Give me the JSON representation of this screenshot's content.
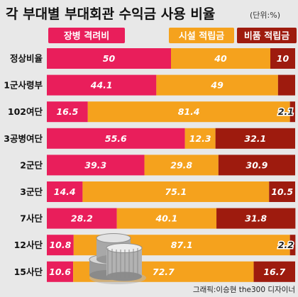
{
  "title": {
    "main": "각 부대별 부대회관 수익금 사용 비율",
    "unit": "(단위:%)"
  },
  "credit": "그래픽:이승현 the300 디자이너",
  "colors": {
    "series1": "#e91e5b",
    "series2": "#f5a21d",
    "series3": "#9e1b0e",
    "background": "#e8e8e8"
  },
  "chart_data": {
    "type": "bar",
    "stacked": true,
    "orientation": "horizontal",
    "categories": [
      "정상비율",
      "1군사령부",
      "102여단",
      "3공병여단",
      "2군단",
      "3군단",
      "7사단",
      "12사단",
      "15사단"
    ],
    "series": [
      {
        "name": "장병 격려비",
        "values": [
          50,
          44.1,
          16.5,
          55.6,
          39.3,
          14.4,
          28.2,
          10.8,
          10.6
        ]
      },
      {
        "name": "시설 적립금",
        "values": [
          40,
          49,
          81.4,
          12.3,
          29.8,
          75.1,
          40.1,
          87.1,
          72.7
        ]
      },
      {
        "name": "비품 적립금",
        "values": [
          10,
          null,
          2.1,
          32.1,
          30.9,
          10.5,
          31.8,
          2.2,
          16.7
        ]
      }
    ],
    "labels": [
      [
        "50",
        "40",
        "10"
      ],
      [
        "44.1",
        "49",
        ""
      ],
      [
        "16.5",
        "81.4",
        "2.1"
      ],
      [
        "55.6",
        "12.3",
        "32.1"
      ],
      [
        "39.3",
        "29.8",
        "30.9"
      ],
      [
        "14.4",
        "75.1",
        "10.5"
      ],
      [
        "28.2",
        "40.1",
        "31.8"
      ],
      [
        "10.8",
        "87.1",
        "2.2"
      ],
      [
        "10.6",
        "72.7",
        "16.7"
      ]
    ],
    "xlim": [
      0,
      100
    ],
    "legend": "top",
    "grid": false
  }
}
